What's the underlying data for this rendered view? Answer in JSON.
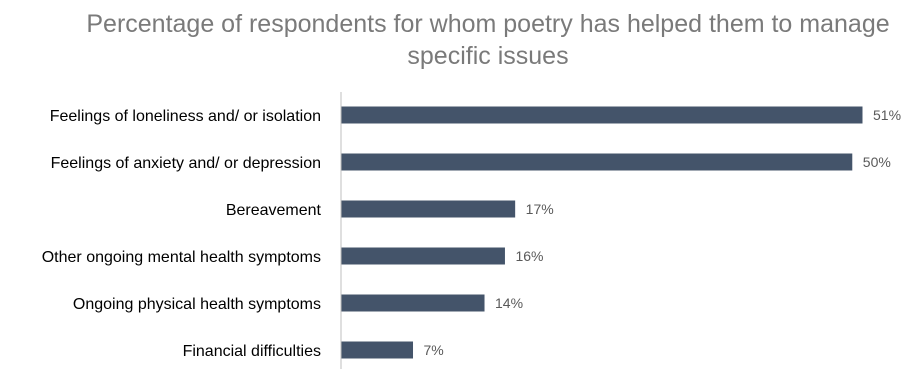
{
  "chart_data": {
    "type": "bar",
    "orientation": "horizontal",
    "title": "Percentage of respondents for whom poetry has helped them to manage specific issues",
    "title_lines": [
      "Percentage of respondents for whom poetry has helped them to manage",
      "specific issues"
    ],
    "categories": [
      "Feelings of loneliness and/ or isolation",
      "Feelings of anxiety and/ or depression",
      "Bereavement",
      "Other ongoing mental health symptoms",
      "Ongoing physical health symptoms",
      "Financial difficulties"
    ],
    "values": [
      51,
      50,
      17,
      16,
      14,
      7
    ],
    "value_labels": [
      "51%",
      "50%",
      "17%",
      "16%",
      "14%",
      "7%"
    ],
    "xlim": [
      0,
      51
    ],
    "grid": false,
    "legend": "none",
    "bar_color": "#44546a",
    "axis_color": "#bfbfbf"
  }
}
